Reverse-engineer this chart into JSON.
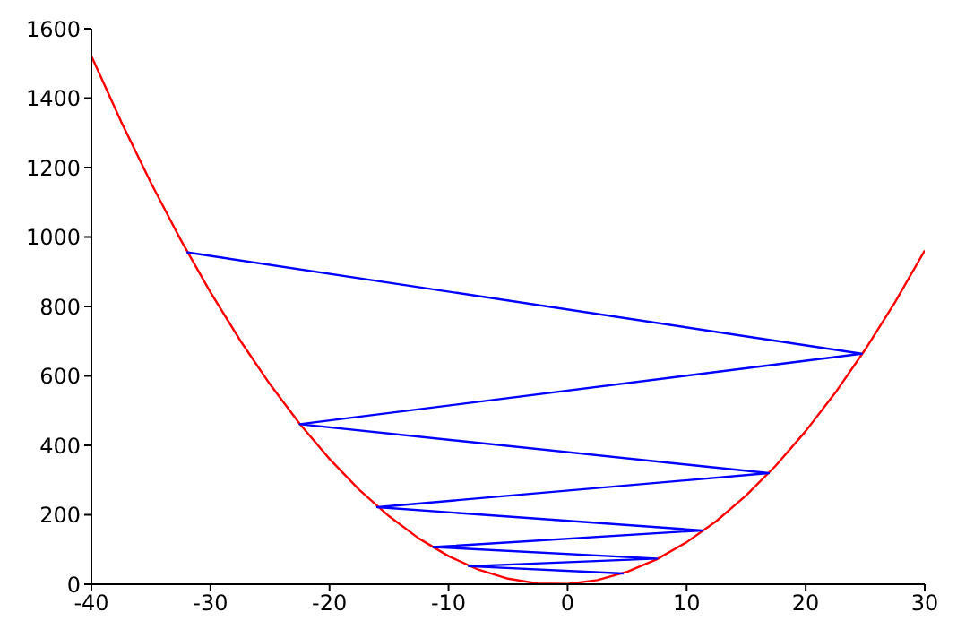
{
  "chart_data": {
    "type": "line",
    "xlim": [
      -40,
      30
    ],
    "xticks": [
      -40,
      -30,
      -20,
      -10,
      0,
      10,
      20,
      30
    ],
    "ylim": [
      0,
      1600
    ],
    "yticks": [
      0,
      200,
      400,
      600,
      800,
      1000,
      1200,
      1400,
      1600
    ],
    "marker": "none",
    "line_style": "solid",
    "series": [
      {
        "color": "#ff0000",
        "x": [
          -40,
          -37.5,
          -35,
          -32.5,
          -30,
          -27.5,
          -25,
          -22.5,
          -20,
          -17.5,
          -15,
          -12.5,
          -10,
          -7.5,
          -5,
          -2.5,
          0,
          2.5,
          5,
          7.5,
          10,
          12.5,
          15,
          17.5,
          20,
          22.5,
          25,
          27.5,
          30
        ],
        "values": [
          1521,
          1332,
          1156,
          992,
          841,
          702,
          576,
          462,
          361,
          272,
          196,
          132,
          81,
          42,
          16,
          2,
          1,
          12,
          36,
          72,
          121,
          182,
          256,
          342,
          441,
          552,
          676,
          812,
          961
        ]
      },
      {
        "color": "#0000ff",
        "x": [
          -32,
          24.7,
          -22.5,
          16.9,
          -16,
          11.3,
          -11.3,
          7.5,
          -8.3,
          4.7
        ],
        "values": [
          956,
          664,
          461,
          320,
          222,
          155,
          107,
          74,
          52,
          31
        ]
      }
    ]
  }
}
